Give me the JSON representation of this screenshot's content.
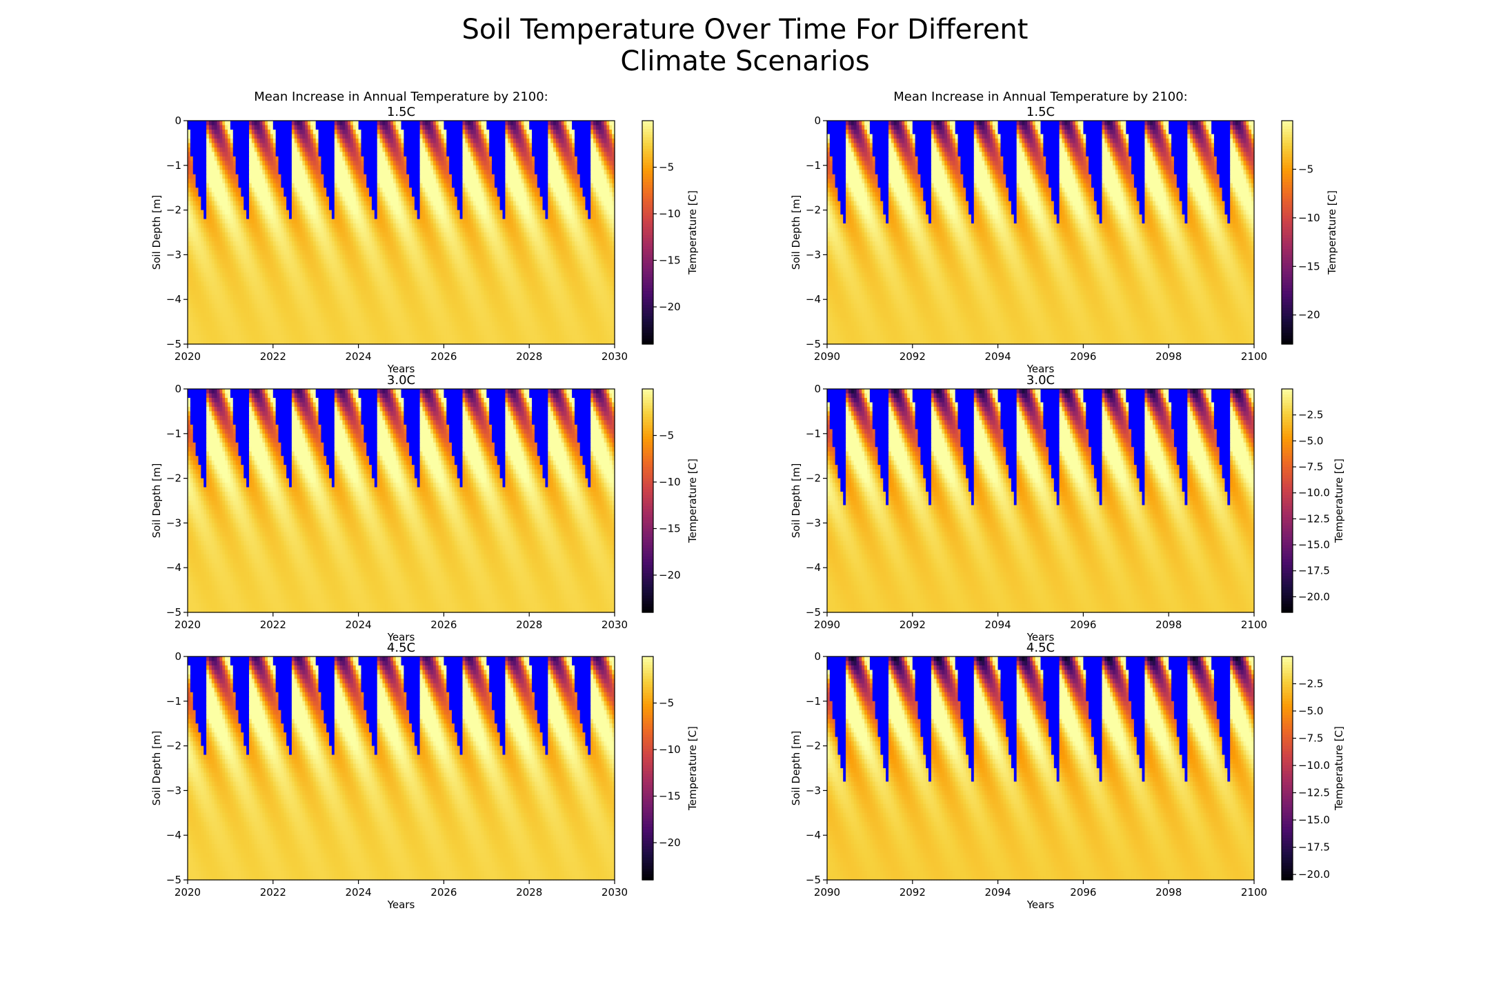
{
  "figure_title": "Soil Temperature Over Time For Different\nClimate Scenarios",
  "colors": {
    "frozen": "#0000ff",
    "colormap": "inferno",
    "colormap_stops": [
      "#000004",
      "#1b0c41",
      "#4a0c6b",
      "#781c6d",
      "#a52c60",
      "#cf4446",
      "#ed6925",
      "#fb9b06",
      "#f7d13d",
      "#fcffa4"
    ]
  },
  "chart_data": [
    {
      "type": "heatmap",
      "title_top": "Mean Increase in Annual Temperature by 2100:",
      "title": "1.5C",
      "xlabel": "Years",
      "ylabel": "Soil Depth [m]",
      "colorbar_label": "Temperature [C]",
      "xlim": [
        2020,
        2030
      ],
      "ylim": [
        -5,
        0
      ],
      "xticks": [
        "2020",
        "2022",
        "2024",
        "2026",
        "2028",
        "2030"
      ],
      "yticks": [
        "0",
        "−1",
        "−2",
        "−3",
        "−4",
        "−5"
      ],
      "color_range": [
        -24,
        0
      ],
      "cbar_ticks": [
        "−5",
        "−10",
        "−15",
        "−20"
      ],
      "cbar_tick_values": [
        -5,
        -10,
        -15,
        -20
      ],
      "frozen_max_depth": -2.2
    },
    {
      "type": "heatmap",
      "title_top": "Mean Increase in Annual Temperature by 2100:",
      "title": "1.5C",
      "xlabel": "Years",
      "ylabel": "Soil Depth [m]",
      "colorbar_label": "Temperature [C]",
      "xlim": [
        2090,
        2100
      ],
      "ylim": [
        -5,
        0
      ],
      "xticks": [
        "2090",
        "2092",
        "2094",
        "2096",
        "2098",
        "2100"
      ],
      "yticks": [
        "0",
        "−1",
        "−2",
        "−3",
        "−4",
        "−5"
      ],
      "color_range": [
        -23,
        0
      ],
      "cbar_ticks": [
        "−5",
        "−10",
        "−15",
        "−20"
      ],
      "cbar_tick_values": [
        -5,
        -10,
        -15,
        -20
      ],
      "frozen_max_depth": -2.3
    },
    {
      "type": "heatmap",
      "title_top": "",
      "title": "3.0C",
      "xlabel": "Years",
      "ylabel": "Soil Depth [m]",
      "colorbar_label": "Temperature [C]",
      "xlim": [
        2020,
        2030
      ],
      "ylim": [
        -5,
        0
      ],
      "xticks": [
        "2020",
        "2022",
        "2024",
        "2026",
        "2028",
        "2030"
      ],
      "yticks": [
        "0",
        "−1",
        "−2",
        "−3",
        "−4",
        "−5"
      ],
      "color_range": [
        -24,
        0
      ],
      "cbar_ticks": [
        "−5",
        "−10",
        "−15",
        "−20"
      ],
      "cbar_tick_values": [
        -5,
        -10,
        -15,
        -20
      ],
      "frozen_max_depth": -2.2
    },
    {
      "type": "heatmap",
      "title_top": "",
      "title": "3.0C",
      "xlabel": "Years",
      "ylabel": "Soil Depth [m]",
      "colorbar_label": "Temperature [C]",
      "xlim": [
        2090,
        2100
      ],
      "ylim": [
        -5,
        0
      ],
      "xticks": [
        "2090",
        "2092",
        "2094",
        "2096",
        "2098",
        "2100"
      ],
      "yticks": [
        "0",
        "−1",
        "−2",
        "−3",
        "−4",
        "−5"
      ],
      "color_range": [
        -21.5,
        0
      ],
      "cbar_ticks": [
        "−2.5",
        "−5.0",
        "−7.5",
        "−10.0",
        "−12.5",
        "−15.0",
        "−17.5",
        "−20.0"
      ],
      "cbar_tick_values": [
        -2.5,
        -5,
        -7.5,
        -10,
        -12.5,
        -15,
        -17.5,
        -20
      ],
      "frozen_max_depth": -2.55
    },
    {
      "type": "heatmap",
      "title_top": "",
      "title": "4.5C",
      "xlabel": "Years",
      "ylabel": "Soil Depth [m]",
      "colorbar_label": "Temperature [C]",
      "xlim": [
        2020,
        2030
      ],
      "ylim": [
        -5,
        0
      ],
      "xticks": [
        "2020",
        "2022",
        "2024",
        "2026",
        "2028",
        "2030"
      ],
      "yticks": [
        "0",
        "−1",
        "−2",
        "−3",
        "−4",
        "−5"
      ],
      "color_range": [
        -24,
        0
      ],
      "cbar_ticks": [
        "−5",
        "−10",
        "−15",
        "−20"
      ],
      "cbar_tick_values": [
        -5,
        -10,
        -15,
        -20
      ],
      "frozen_max_depth": -2.2
    },
    {
      "type": "heatmap",
      "title_top": "",
      "title": "4.5C",
      "xlabel": "Years",
      "ylabel": "Soil Depth [m]",
      "colorbar_label": "Temperature [C]",
      "xlim": [
        2090,
        2100
      ],
      "ylim": [
        -5,
        0
      ],
      "xticks": [
        "2090",
        "2092",
        "2094",
        "2096",
        "2098",
        "2100"
      ],
      "yticks": [
        "0",
        "−1",
        "−2",
        "−3",
        "−4",
        "−5"
      ],
      "color_range": [
        -20.5,
        0
      ],
      "cbar_ticks": [
        "−2.5",
        "−5.0",
        "−7.5",
        "−10.0",
        "−12.5",
        "−15.0",
        "−17.5",
        "−20.0"
      ],
      "cbar_tick_values": [
        -2.5,
        -5,
        -7.5,
        -10,
        -12.5,
        -15,
        -17.5,
        -20
      ],
      "frozen_max_depth": -2.75
    }
  ]
}
